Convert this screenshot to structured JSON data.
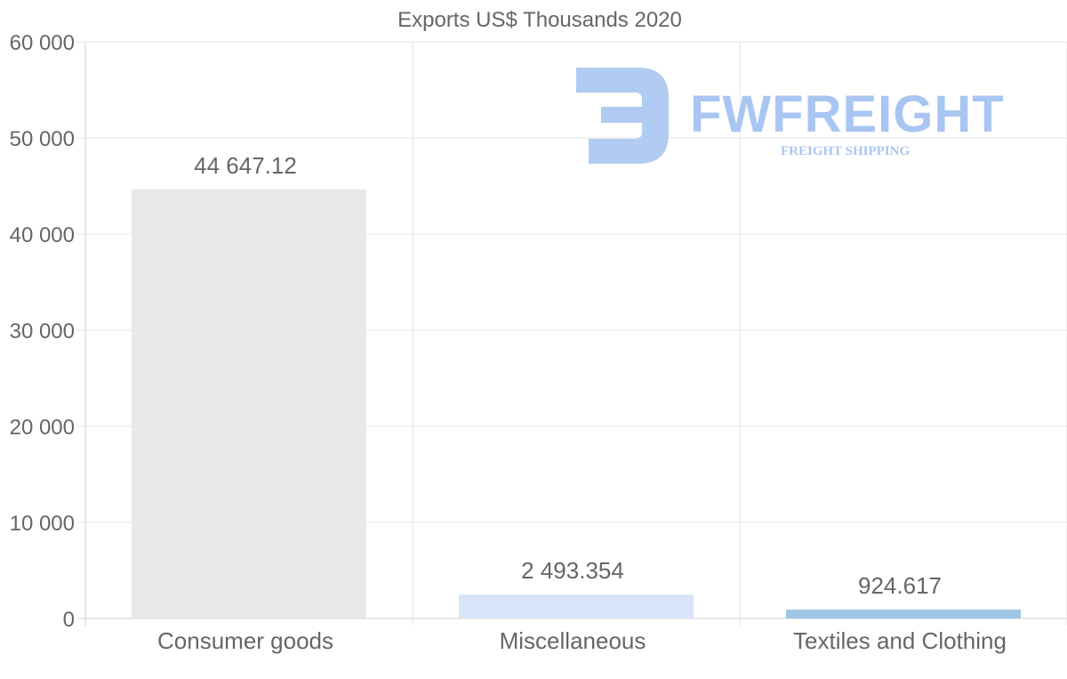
{
  "chart_data": {
    "type": "bar",
    "title": "Exports US$ Thousands 2020",
    "categories": [
      "Consumer goods",
      "Miscellaneous",
      "Textiles and Clothing"
    ],
    "values": [
      44647.12,
      2493.354,
      924.617
    ],
    "value_labels": [
      "44 647.12",
      "2 493.354",
      "924.617"
    ],
    "bar_colors": [
      "#e8e8e8",
      "#d6e6f8",
      "#9fc5e8"
    ],
    "ylim": [
      0,
      60000
    ],
    "yticks": [
      0,
      10000,
      20000,
      30000,
      40000,
      50000,
      60000
    ],
    "ytick_labels": [
      "0",
      "10 000",
      "20 000",
      "30 000",
      "40 000",
      "50 000",
      "60 000"
    ],
    "xlabel": "",
    "ylabel": "",
    "grid": true,
    "legend": "none"
  },
  "watermark": {
    "brand": "FWFREIGHT",
    "tagline": "FREIGHT SHIPPING",
    "color": "#a9c6f2"
  }
}
